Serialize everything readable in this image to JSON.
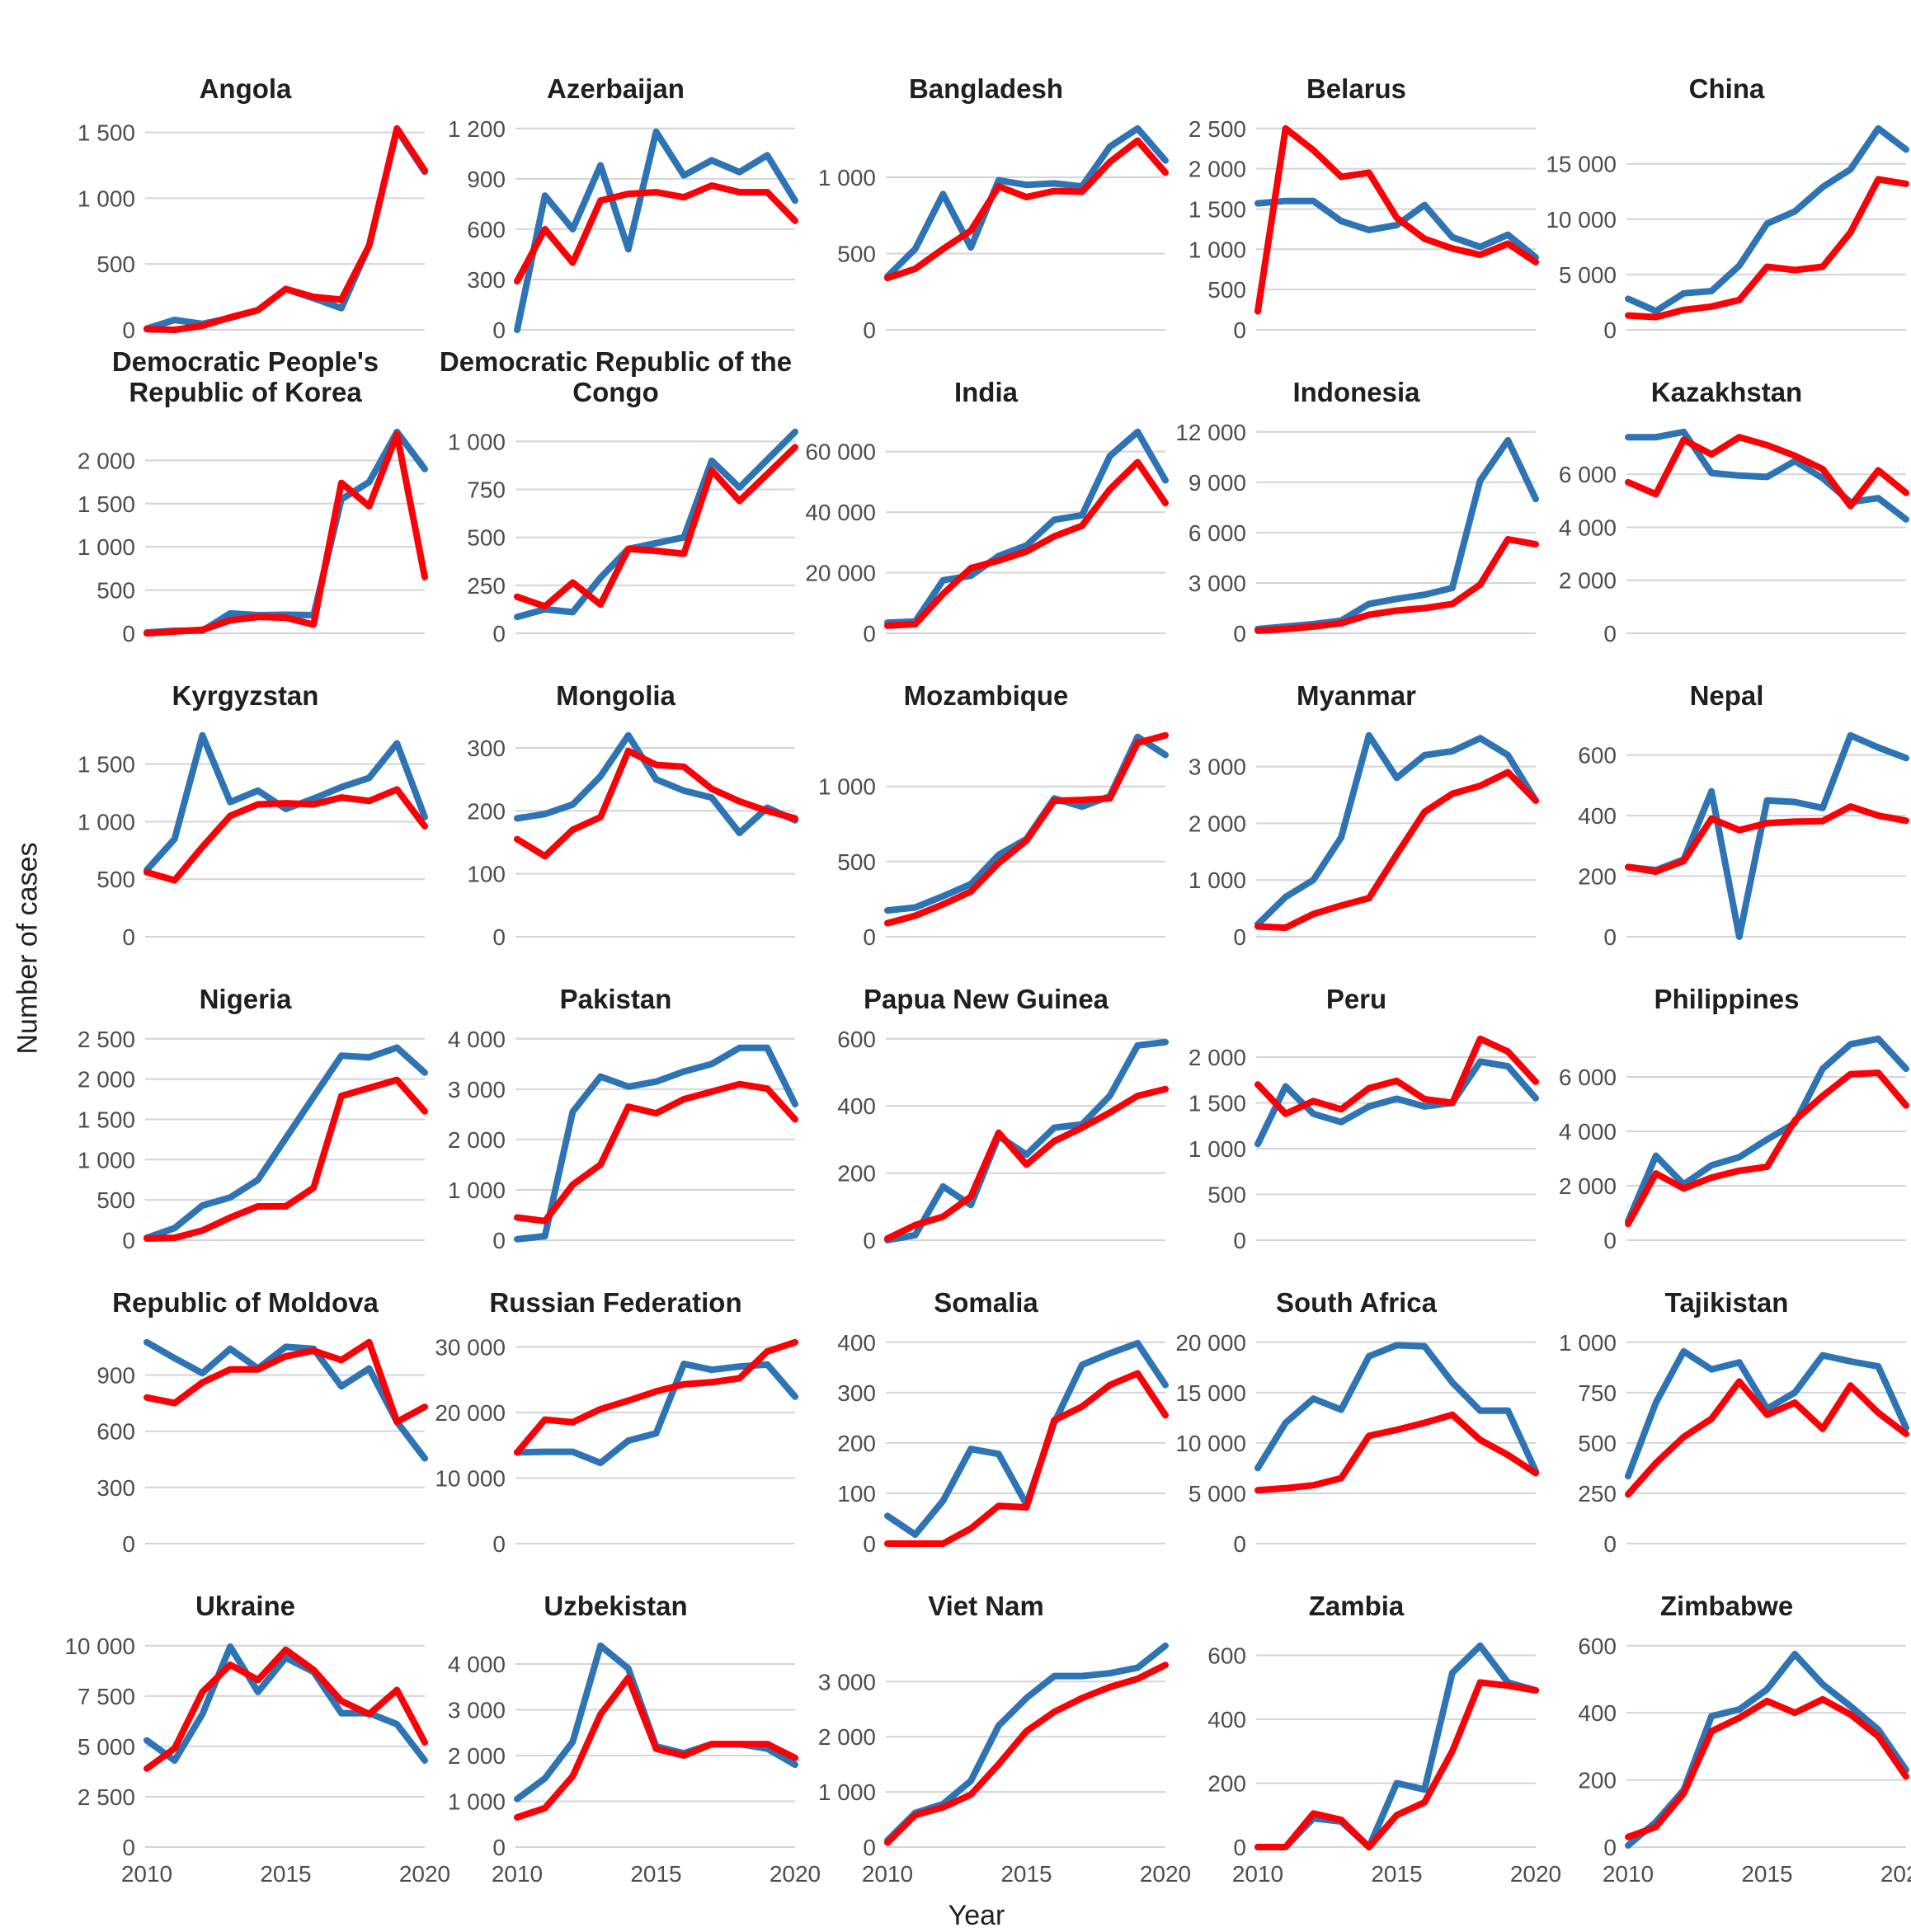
{
  "page": {
    "ylabel": "Number of cases",
    "xlabel": "Year"
  },
  "chart_data": {
    "type": "line",
    "x": [
      2010,
      2011,
      2012,
      2013,
      2014,
      2015,
      2016,
      2017,
      2018,
      2019,
      2020
    ],
    "x_ticks": [
      2010,
      2015,
      2020
    ],
    "grid": "horizontal-only",
    "legend": "none",
    "colors": {
      "blue": "#2E74B5",
      "red": "#FB0007",
      "gridline": "#D4D4D4"
    },
    "facets": [
      {
        "title": "Angola",
        "y_ticks": [
          0,
          500,
          1000,
          1500
        ],
        "blue": [
          10,
          75,
          45,
          90,
          150,
          310,
          240,
          165,
          640,
          1520,
          1200
        ],
        "red": [
          5,
          0,
          30,
          95,
          150,
          310,
          250,
          230,
          640,
          1530,
          1210
        ]
      },
      {
        "title": "Azerbaijan",
        "y_ticks": [
          0,
          300,
          600,
          900,
          1200
        ],
        "blue": [
          0,
          800,
          600,
          980,
          480,
          1180,
          920,
          1010,
          940,
          1040,
          770
        ],
        "red": [
          290,
          600,
          400,
          770,
          810,
          820,
          790,
          860,
          820,
          820,
          650
        ]
      },
      {
        "title": "Bangladesh",
        "y_ticks": [
          0,
          500,
          1000
        ],
        "blue": [
          350,
          530,
          890,
          540,
          980,
          950,
          960,
          940,
          1200,
          1320,
          1110
        ],
        "red": [
          340,
          400,
          530,
          650,
          940,
          870,
          910,
          905,
          1100,
          1240,
          1030
        ]
      },
      {
        "title": "Belarus",
        "y_ticks": [
          0,
          500,
          1000,
          1500,
          2000,
          2500
        ],
        "blue": [
          1570,
          1600,
          1600,
          1350,
          1240,
          1300,
          1550,
          1150,
          1030,
          1180,
          900
        ],
        "red": [
          230,
          2500,
          2230,
          1900,
          1950,
          1390,
          1130,
          1010,
          930,
          1070,
          840
        ]
      },
      {
        "title": "China",
        "y_ticks": [
          0,
          5000,
          10000,
          15000
        ],
        "blue": [
          2800,
          1700,
          3300,
          3500,
          5800,
          9600,
          10700,
          12900,
          14500,
          18200,
          16300
        ],
        "red": [
          1300,
          1150,
          1800,
          2100,
          2700,
          5700,
          5400,
          5700,
          8800,
          13600,
          13200
        ]
      },
      {
        "title": "Democratic People's Republic of Korea",
        "y_ticks": [
          0,
          500,
          1000,
          1500,
          2000
        ],
        "blue": [
          10,
          30,
          30,
          230,
          210,
          215,
          210,
          1550,
          1750,
          2330,
          1900
        ],
        "red": [
          0,
          20,
          40,
          150,
          190,
          180,
          100,
          1740,
          1470,
          2300,
          650
        ]
      },
      {
        "title": "Democratic Republic of the Congo",
        "y_ticks": [
          0,
          250,
          500,
          750,
          1000
        ],
        "blue": [
          85,
          125,
          110,
          290,
          440,
          470,
          500,
          900,
          760,
          905,
          1050
        ],
        "red": [
          190,
          140,
          265,
          150,
          440,
          430,
          415,
          850,
          690,
          830,
          970
        ]
      },
      {
        "title": "India",
        "y_ticks": [
          0,
          20000,
          40000,
          60000
        ],
        "blue": [
          3500,
          3900,
          17500,
          19000,
          25500,
          29000,
          37500,
          39000,
          58500,
          66500,
          50500
        ],
        "red": [
          2500,
          3000,
          13000,
          21500,
          24000,
          27000,
          32000,
          35500,
          47500,
          56500,
          43000
        ]
      },
      {
        "title": "Indonesia",
        "y_ticks": [
          0,
          3000,
          6000,
          9000,
          12000
        ],
        "blue": [
          250,
          400,
          550,
          750,
          1750,
          2050,
          2300,
          2700,
          9100,
          11500,
          8000
        ],
        "red": [
          150,
          250,
          400,
          600,
          1100,
          1350,
          1500,
          1750,
          2900,
          5600,
          5300
        ]
      },
      {
        "title": "Kazakhstan",
        "y_ticks": [
          0,
          2000,
          4000,
          6000
        ],
        "blue": [
          7400,
          7400,
          7600,
          6050,
          5950,
          5900,
          6500,
          5850,
          4950,
          5100,
          4300
        ],
        "red": [
          5700,
          5250,
          7300,
          6750,
          7400,
          7100,
          6700,
          6200,
          4800,
          6150,
          5300
        ]
      },
      {
        "title": "Kyrgyzstan",
        "y_ticks": [
          0,
          500,
          1000,
          1500
        ],
        "blue": [
          580,
          850,
          1750,
          1170,
          1270,
          1110,
          1200,
          1300,
          1380,
          1680,
          1040
        ],
        "red": [
          560,
          490,
          780,
          1050,
          1150,
          1160,
          1150,
          1210,
          1180,
          1280,
          960
        ]
      },
      {
        "title": "Mongolia",
        "y_ticks": [
          0,
          100,
          200,
          300
        ],
        "blue": [
          188,
          195,
          210,
          255,
          320,
          250,
          232,
          221,
          165,
          205,
          185
        ],
        "red": [
          155,
          128,
          170,
          190,
          295,
          273,
          270,
          235,
          215,
          200,
          188
        ]
      },
      {
        "title": "Mozambique",
        "y_ticks": [
          0,
          500,
          1000
        ],
        "blue": [
          175,
          195,
          270,
          350,
          545,
          650,
          920,
          865,
          935,
          1330,
          1210
        ],
        "red": [
          90,
          140,
          215,
          300,
          490,
          640,
          905,
          910,
          920,
          1290,
          1340
        ]
      },
      {
        "title": "Myanmar",
        "y_ticks": [
          0,
          1000,
          2000,
          3000
        ],
        "blue": [
          220,
          700,
          1000,
          1750,
          3550,
          2800,
          3200,
          3270,
          3500,
          3200,
          2400
        ],
        "red": [
          180,
          160,
          400,
          550,
          680,
          1450,
          2200,
          2520,
          2660,
          2900,
          2400
        ]
      },
      {
        "title": "Nepal",
        "y_ticks": [
          0,
          200,
          400,
          600
        ],
        "blue": [
          230,
          220,
          255,
          480,
          0,
          450,
          445,
          425,
          665,
          625,
          590
        ],
        "red": [
          230,
          215,
          250,
          390,
          352,
          375,
          380,
          382,
          430,
          400,
          383
        ]
      },
      {
        "title": "Nigeria",
        "y_ticks": [
          0,
          500,
          1000,
          1500,
          2000,
          2500
        ],
        "blue": [
          30,
          150,
          430,
          530,
          750,
          1265,
          1780,
          2290,
          2270,
          2390,
          2080
        ],
        "red": [
          20,
          30,
          120,
          280,
          420,
          420,
          650,
          1790,
          1890,
          1990,
          1600
        ]
      },
      {
        "title": "Pakistan",
        "y_ticks": [
          0,
          1000,
          2000,
          3000,
          4000
        ],
        "blue": [
          20,
          80,
          2550,
          3250,
          3050,
          3150,
          3350,
          3500,
          3820,
          3820,
          2700
        ],
        "red": [
          450,
          380,
          1100,
          1500,
          2650,
          2520,
          2800,
          2950,
          3100,
          3010,
          2400
        ]
      },
      {
        "title": "Papua New Guinea",
        "y_ticks": [
          0,
          200,
          400,
          600
        ],
        "blue": [
          0,
          15,
          160,
          105,
          310,
          255,
          335,
          345,
          430,
          580,
          590
        ],
        "red": [
          5,
          45,
          70,
          130,
          320,
          225,
          295,
          335,
          380,
          430,
          450
        ]
      },
      {
        "title": "Peru",
        "y_ticks": [
          0,
          500,
          1000,
          1500,
          2000
        ],
        "blue": [
          1050,
          1680,
          1380,
          1290,
          1460,
          1545,
          1460,
          1500,
          1950,
          1900,
          1550
        ],
        "red": [
          1700,
          1380,
          1520,
          1430,
          1660,
          1740,
          1540,
          1500,
          2200,
          2060,
          1730
        ]
      },
      {
        "title": "Philippines",
        "y_ticks": [
          0,
          2000,
          4000,
          6000
        ],
        "blue": [
          700,
          3100,
          2050,
          2750,
          3050,
          3700,
          4300,
          6300,
          7200,
          7400,
          6300
        ],
        "red": [
          600,
          2450,
          1900,
          2300,
          2550,
          2700,
          4400,
          5300,
          6100,
          6150,
          4950
        ]
      },
      {
        "title": "Republic of Moldova",
        "y_ticks": [
          0,
          300,
          600,
          900
        ],
        "blue": [
          1075,
          990,
          910,
          1040,
          935,
          1050,
          1040,
          840,
          935,
          650,
          455
        ],
        "red": [
          780,
          750,
          860,
          930,
          930,
          1000,
          1030,
          980,
          1075,
          650,
          730
        ]
      },
      {
        "title": "Russian Federation",
        "y_ticks": [
          0,
          10000,
          20000,
          30000
        ],
        "blue": [
          13900,
          14000,
          14000,
          12300,
          15700,
          16800,
          27400,
          26500,
          27000,
          27300,
          22400
        ],
        "red": [
          13900,
          18900,
          18500,
          20500,
          21800,
          23200,
          24300,
          24600,
          25200,
          29300,
          30700
        ]
      },
      {
        "title": "Somalia",
        "y_ticks": [
          0,
          100,
          200,
          300,
          400
        ],
        "blue": [
          55,
          18,
          85,
          188,
          178,
          78,
          240,
          355,
          378,
          398,
          315
        ],
        "red": [
          0,
          0,
          0,
          30,
          75,
          72,
          245,
          272,
          315,
          338,
          255
        ]
      },
      {
        "title": "South Africa",
        "y_ticks": [
          0,
          5000,
          10000,
          15000,
          20000
        ],
        "blue": [
          7500,
          12000,
          14400,
          13300,
          18600,
          19700,
          19600,
          16000,
          13200,
          13200,
          7200
        ],
        "red": [
          5300,
          5500,
          5800,
          6500,
          10700,
          11300,
          12000,
          12800,
          10300,
          8800,
          7000
        ]
      },
      {
        "title": "Tajikistan",
        "y_ticks": [
          0,
          250,
          500,
          750,
          1000
        ],
        "blue": [
          335,
          700,
          955,
          865,
          900,
          670,
          750,
          935,
          905,
          880,
          575
        ],
        "red": [
          245,
          400,
          530,
          620,
          805,
          640,
          700,
          570,
          785,
          650,
          545
        ]
      },
      {
        "title": "Ukraine",
        "y_ticks": [
          0,
          2500,
          5000,
          7500,
          10000
        ],
        "blue": [
          5300,
          4300,
          6600,
          9950,
          7700,
          9400,
          8700,
          6650,
          6650,
          6100,
          4300
        ],
        "red": [
          3900,
          4900,
          7700,
          9050,
          8300,
          9800,
          8800,
          7250,
          6600,
          7800,
          5200
        ]
      },
      {
        "title": "Uzbekistan",
        "y_ticks": [
          0,
          1000,
          2000,
          3000,
          4000
        ],
        "blue": [
          1050,
          1500,
          2300,
          4400,
          3900,
          2200,
          2050,
          2250,
          2250,
          2150,
          1800
        ],
        "red": [
          650,
          850,
          1550,
          2900,
          3700,
          2150,
          2000,
          2250,
          2250,
          2250,
          1950
        ]
      },
      {
        "title": "Viet Nam",
        "y_ticks": [
          0,
          1000,
          2000,
          3000
        ],
        "blue": [
          120,
          620,
          780,
          1200,
          2200,
          2700,
          3100,
          3100,
          3150,
          3250,
          3650
        ],
        "red": [
          80,
          580,
          720,
          950,
          1500,
          2100,
          2450,
          2700,
          2900,
          3050,
          3300
        ]
      },
      {
        "title": "Zambia",
        "y_ticks": [
          0,
          200,
          400,
          600
        ],
        "blue": [
          0,
          0,
          90,
          80,
          0,
          200,
          180,
          545,
          630,
          515,
          490
        ],
        "red": [
          0,
          0,
          105,
          85,
          0,
          100,
          140,
          300,
          515,
          505,
          490
        ]
      },
      {
        "title": "Zimbabwe",
        "y_ticks": [
          0,
          200,
          400,
          600
        ],
        "blue": [
          5,
          75,
          170,
          390,
          410,
          470,
          575,
          485,
          420,
          350,
          230
        ],
        "red": [
          30,
          60,
          160,
          345,
          385,
          435,
          400,
          440,
          395,
          330,
          210
        ]
      }
    ]
  }
}
